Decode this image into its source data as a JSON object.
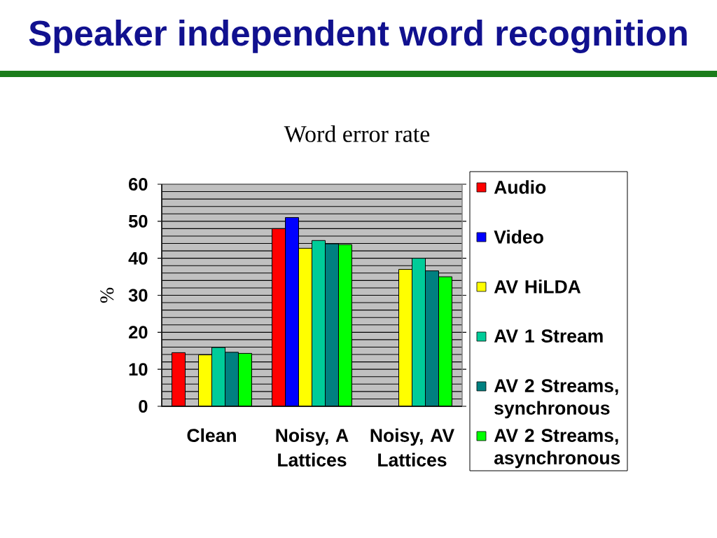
{
  "chart_data": {
    "type": "bar",
    "title": "Speaker independent word recognition",
    "subtitle": "Word error rate",
    "ylabel": "%",
    "categories": [
      "Clean",
      "Noisy, A Lattices",
      "Noisy, AV Lattices"
    ],
    "series": [
      {
        "name": "Audio",
        "color": "#ff0000",
        "values": [
          14.5,
          48,
          null
        ]
      },
      {
        "name": "Video",
        "color": "#0000ff",
        "values": [
          null,
          51,
          null
        ]
      },
      {
        "name": "AV HiLDA",
        "color": "#ffff00",
        "values": [
          13.9,
          42.7,
          37
        ]
      },
      {
        "name": "AV 1 Stream",
        "color": "#00cc99",
        "values": [
          15.9,
          44.8,
          40
        ]
      },
      {
        "name": "AV 2 Streams, synchronous",
        "color": "#008080",
        "values": [
          14.6,
          43.9,
          36.6
        ]
      },
      {
        "name": "AV 2 Streams, asynchronous",
        "color": "#00ff00",
        "values": [
          14.3,
          43.7,
          35
        ]
      }
    ],
    "ylim": [
      0,
      60
    ],
    "yticks": [
      0,
      {
        "value": 2,
        "label": null
      },
      {
        "value": 4,
        "label": null
      },
      {
        "value": 6,
        "label": null
      },
      {
        "value": 8,
        "label": null
      },
      10,
      {
        "value": 12,
        "label": null
      },
      {
        "value": 14,
        "label": null
      },
      {
        "value": 16,
        "label": null
      },
      {
        "value": 18,
        "label": null
      },
      20,
      {
        "value": 22,
        "label": null
      },
      {
        "value": 24,
        "label": null
      },
      {
        "value": 26,
        "label": null
      },
      {
        "value": 28,
        "label": null
      },
      30,
      {
        "value": 32,
        "label": null
      },
      {
        "value": 34,
        "label": null
      },
      {
        "value": 36,
        "label": null
      },
      {
        "value": 38,
        "label": null
      },
      40,
      {
        "value": 42,
        "label": null
      },
      {
        "value": 44,
        "label": null
      },
      {
        "value": 46,
        "label": null
      },
      {
        "value": 48,
        "label": null
      },
      50,
      {
        "value": 52,
        "label": null
      },
      {
        "value": 54,
        "label": null
      },
      {
        "value": 56,
        "label": null
      },
      {
        "value": 58,
        "label": null
      },
      60
    ],
    "grid": "y",
    "legend": "right"
  }
}
